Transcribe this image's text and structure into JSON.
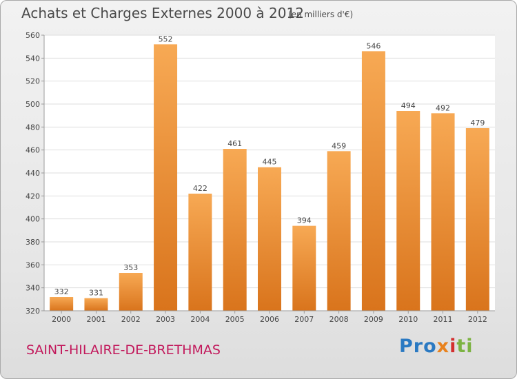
{
  "header": {
    "title": "Achats et Charges Externes 2000 à 2012",
    "subtitle": "(en milliers d'€)"
  },
  "footer": {
    "commune": "SAINT-HILAIRE-DE-BRETHMAS",
    "logo": {
      "text": "Proxiti",
      "colors": [
        "#2a79c2",
        "#e8821e",
        "#d32f2f",
        "#7cb342"
      ]
    }
  },
  "chart_data": {
    "type": "bar",
    "title": "Achats et Charges Externes 2000 à 2012",
    "subtitle": "(en milliers d'€)",
    "categories": [
      "2000",
      "2001",
      "2002",
      "2003",
      "2004",
      "2005",
      "2006",
      "2007",
      "2008",
      "2009",
      "2010",
      "2011",
      "2012"
    ],
    "values": [
      332,
      331,
      353,
      552,
      422,
      461,
      445,
      394,
      459,
      546,
      494,
      492,
      479
    ],
    "ylim": [
      320,
      560
    ],
    "yticks": [
      320,
      340,
      360,
      380,
      400,
      420,
      440,
      460,
      480,
      500,
      520,
      540,
      560
    ],
    "grid": true,
    "bar_color_top": "#f7a954",
    "bar_color_bottom": "#d9741c",
    "xlabel": "",
    "ylabel": ""
  }
}
